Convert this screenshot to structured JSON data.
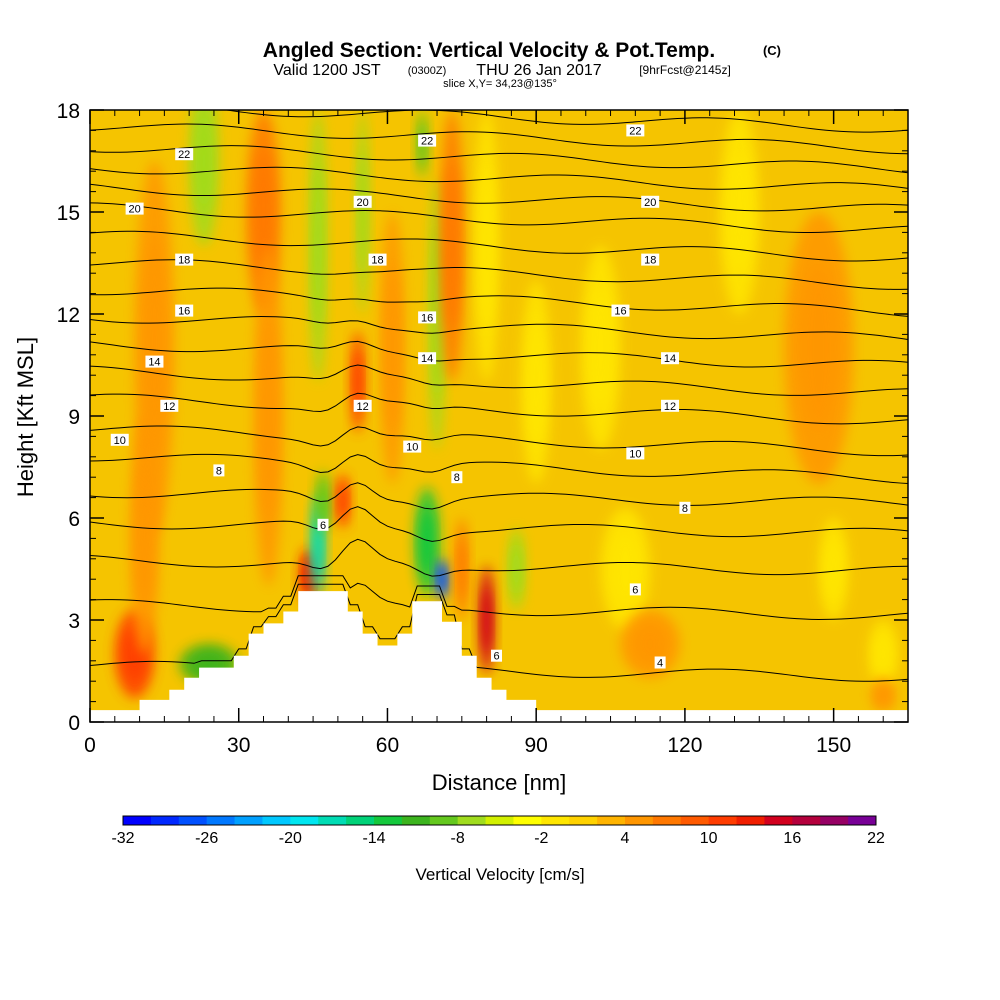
{
  "header": {
    "title": "Angled Section: Vertical Velocity & Pot.Temp.",
    "title_tag": "(C)",
    "valid_prefix": "Valid 1200 JST",
    "valid_utc": "(0300Z)",
    "valid_date": "THU 26 Jan 2017",
    "forecast": "[9hrFcst@2145z]",
    "slice": "slice X,Y= 34,23@135°"
  },
  "chart_data": {
    "type": "heatmap",
    "xlabel": "Distance [nm]",
    "ylabel": "Height [Kft MSL]",
    "xlim": [
      0,
      165
    ],
    "ylim": [
      0,
      18
    ],
    "x_ticks": [
      "0",
      "30",
      "60",
      "90",
      "120",
      "150"
    ],
    "x_tick_values": [
      0,
      30,
      60,
      90,
      120,
      150
    ],
    "y_ticks": [
      "0",
      "3",
      "6",
      "9",
      "12",
      "15",
      "18"
    ],
    "y_tick_values": [
      0,
      3,
      6,
      9,
      12,
      15,
      18
    ],
    "background_color": "#f5c400",
    "terrain": [
      [
        0,
        0.35
      ],
      [
        10,
        0.35
      ],
      [
        10,
        0.65
      ],
      [
        16,
        0.65
      ],
      [
        16,
        0.95
      ],
      [
        19,
        0.95
      ],
      [
        19,
        1.3
      ],
      [
        22,
        1.3
      ],
      [
        22,
        1.6
      ],
      [
        29,
        1.6
      ],
      [
        29,
        1.95
      ],
      [
        32,
        1.95
      ],
      [
        32,
        2.6
      ],
      [
        35,
        2.6
      ],
      [
        35,
        2.9
      ],
      [
        39,
        2.9
      ],
      [
        39,
        3.25
      ],
      [
        42,
        3.25
      ],
      [
        42,
        3.85
      ],
      [
        52,
        3.85
      ],
      [
        52,
        3.25
      ],
      [
        55,
        3.25
      ],
      [
        55,
        2.6
      ],
      [
        58,
        2.6
      ],
      [
        58,
        2.25
      ],
      [
        62,
        2.25
      ],
      [
        62,
        2.6
      ],
      [
        65,
        2.6
      ],
      [
        65,
        3.55
      ],
      [
        71,
        3.55
      ],
      [
        71,
        2.95
      ],
      [
        75,
        2.95
      ],
      [
        75,
        1.95
      ],
      [
        78,
        1.95
      ],
      [
        78,
        1.3
      ],
      [
        81,
        1.3
      ],
      [
        81,
        0.95
      ],
      [
        84,
        0.95
      ],
      [
        84,
        0.65
      ],
      [
        90,
        0.65
      ],
      [
        90,
        0.35
      ],
      [
        165,
        0.35
      ]
    ],
    "velocity_blobs": [
      {
        "x": 9,
        "y": 2.0,
        "rx": 4,
        "ry": 1.3,
        "value": 10
      },
      {
        "x": 11,
        "y": 5.5,
        "rx": 3,
        "ry": 3.5,
        "value": 4
      },
      {
        "x": 13,
        "y": 11,
        "rx": 4,
        "ry": 5.5,
        "value": 4
      },
      {
        "x": 24,
        "y": 1.7,
        "rx": 6,
        "ry": 0.6,
        "value": -12
      },
      {
        "x": 23,
        "y": 16.5,
        "rx": 3,
        "ry": 2.5,
        "value": -8
      },
      {
        "x": 35,
        "y": 15,
        "rx": 3.5,
        "ry": 3,
        "value": 6
      },
      {
        "x": 36,
        "y": 9,
        "rx": 3,
        "ry": 5,
        "value": 4
      },
      {
        "x": 44,
        "y": 4.3,
        "rx": 1.8,
        "ry": 0.8,
        "value": 12
      },
      {
        "x": 46,
        "y": 5.2,
        "rx": 1.5,
        "ry": 1.5,
        "value": -18
      },
      {
        "x": 47,
        "y": 6.5,
        "rx": 1.6,
        "ry": 0.9,
        "value": -10
      },
      {
        "x": 46,
        "y": 14,
        "rx": 1.8,
        "ry": 4,
        "value": -8
      },
      {
        "x": 51,
        "y": 6.5,
        "rx": 1.5,
        "ry": 0.8,
        "value": 10
      },
      {
        "x": 54,
        "y": 10,
        "rx": 1.5,
        "ry": 1.5,
        "value": 10
      },
      {
        "x": 55,
        "y": 15,
        "rx": 1.3,
        "ry": 3,
        "value": -8
      },
      {
        "x": 61,
        "y": 11,
        "rx": 2.5,
        "ry": 4,
        "value": 4
      },
      {
        "x": 68,
        "y": 5.3,
        "rx": 2.5,
        "ry": 1.6,
        "value": -14
      },
      {
        "x": 71,
        "y": 4.2,
        "rx": 1.3,
        "ry": 0.6,
        "value": -28
      },
      {
        "x": 70,
        "y": 12,
        "rx": 1.7,
        "ry": 4,
        "value": -8
      },
      {
        "x": 67,
        "y": 17,
        "rx": 1.2,
        "ry": 1,
        "value": -10
      },
      {
        "x": 73,
        "y": 14,
        "rx": 2.5,
        "ry": 4,
        "value": 6
      },
      {
        "x": 75,
        "y": 4.5,
        "rx": 1.4,
        "ry": 1.5,
        "value": 6
      },
      {
        "x": 80,
        "y": 3.0,
        "rx": 1.6,
        "ry": 1.6,
        "value": 14
      },
      {
        "x": 86,
        "y": 4.5,
        "rx": 1.8,
        "ry": 1.2,
        "value": -8
      },
      {
        "x": 80,
        "y": 14,
        "rx": 2.5,
        "ry": 4,
        "value": -2
      },
      {
        "x": 90,
        "y": 10,
        "rx": 3,
        "ry": 3,
        "value": -2
      },
      {
        "x": 103,
        "y": 11,
        "rx": 4,
        "ry": 3,
        "value": -2
      },
      {
        "x": 108,
        "y": 4.5,
        "rx": 5,
        "ry": 1.8,
        "value": -2
      },
      {
        "x": 113,
        "y": 2.3,
        "rx": 6,
        "ry": 1,
        "value": 4
      },
      {
        "x": 131,
        "y": 15,
        "rx": 4,
        "ry": 3,
        "value": -2
      },
      {
        "x": 147,
        "y": 11,
        "rx": 7,
        "ry": 4,
        "value": 4
      },
      {
        "x": 150,
        "y": 4.5,
        "rx": 3,
        "ry": 1.5,
        "value": -2
      },
      {
        "x": 160,
        "y": 2.0,
        "rx": 3,
        "ry": 1,
        "value": -2
      },
      {
        "x": 160,
        "y": 0.8,
        "rx": 2.5,
        "ry": 0.5,
        "value": 4
      }
    ],
    "isentrope_levels": [
      4,
      5,
      6,
      7,
      8,
      9,
      10,
      11,
      12,
      13,
      14,
      15,
      16,
      17,
      18,
      19,
      20,
      21,
      22,
      23
    ],
    "isentrope_base_height": [
      1.5,
      3.3,
      4.6,
      5.7,
      6.6,
      7.5,
      8.3,
      9.2,
      10.0,
      10.8,
      11.6,
      12.4,
      13.2,
      14.0,
      14.8,
      15.4,
      16.0,
      16.6,
      17.2,
      17.8
    ],
    "isentrope_labels": [
      {
        "text": "4",
        "x": 115,
        "y": 1.75
      },
      {
        "text": "6",
        "x": 47,
        "y": 5.8
      },
      {
        "text": "6",
        "x": 110,
        "y": 3.9
      },
      {
        "text": "6",
        "x": 82,
        "y": 1.95
      },
      {
        "text": "8",
        "x": 26,
        "y": 7.4
      },
      {
        "text": "8",
        "x": 74,
        "y": 7.2
      },
      {
        "text": "8",
        "x": 120,
        "y": 6.3
      },
      {
        "text": "10",
        "x": 6,
        "y": 8.3
      },
      {
        "text": "10",
        "x": 65,
        "y": 8.1
      },
      {
        "text": "10",
        "x": 110,
        "y": 7.9
      },
      {
        "text": "12",
        "x": 16,
        "y": 9.3
      },
      {
        "text": "12",
        "x": 55,
        "y": 9.3
      },
      {
        "text": "12",
        "x": 117,
        "y": 9.3
      },
      {
        "text": "14",
        "x": 13,
        "y": 10.6
      },
      {
        "text": "14",
        "x": 68,
        "y": 10.7
      },
      {
        "text": "14",
        "x": 117,
        "y": 10.7
      },
      {
        "text": "16",
        "x": 19,
        "y": 12.1
      },
      {
        "text": "16",
        "x": 68,
        "y": 11.9
      },
      {
        "text": "16",
        "x": 107,
        "y": 12.1
      },
      {
        "text": "18",
        "x": 19,
        "y": 13.6
      },
      {
        "text": "18",
        "x": 58,
        "y": 13.6
      },
      {
        "text": "18",
        "x": 113,
        "y": 13.6
      },
      {
        "text": "20",
        "x": 9,
        "y": 15.1
      },
      {
        "text": "20",
        "x": 55,
        "y": 15.3
      },
      {
        "text": "20",
        "x": 113,
        "y": 15.3
      },
      {
        "text": "22",
        "x": 19,
        "y": 16.7
      },
      {
        "text": "22",
        "x": 68,
        "y": 17.1
      },
      {
        "text": "22",
        "x": 110,
        "y": 17.4
      }
    ],
    "colorbar": {
      "label": "Vertical Velocity [cm/s]",
      "tick_labels": [
        "-32",
        "-26",
        "-20",
        "-14",
        "-8",
        "-2",
        "4",
        "10",
        "16",
        "22"
      ],
      "bins": [
        -32,
        -30,
        -28,
        -26,
        -24,
        -22,
        -20,
        -18,
        -16,
        -14,
        -12,
        -10,
        -8,
        -6,
        -4,
        -2,
        0,
        2,
        4,
        6,
        8,
        10,
        12,
        14,
        16,
        18,
        20,
        22
      ],
      "colors": [
        "#0000ff",
        "#0028ff",
        "#0050ff",
        "#0078ff",
        "#00a0ff",
        "#00c8ff",
        "#00e6f0",
        "#00dcb4",
        "#00d278",
        "#14c83c",
        "#3cb41e",
        "#64c81e",
        "#a0dc1e",
        "#d2f000",
        "#ffff00",
        "#ffe600",
        "#ffd200",
        "#ffb400",
        "#ff9600",
        "#ff7800",
        "#ff5a00",
        "#ff3c00",
        "#f01e00",
        "#d2001e",
        "#b4003c",
        "#960064",
        "#780096"
      ]
    }
  }
}
